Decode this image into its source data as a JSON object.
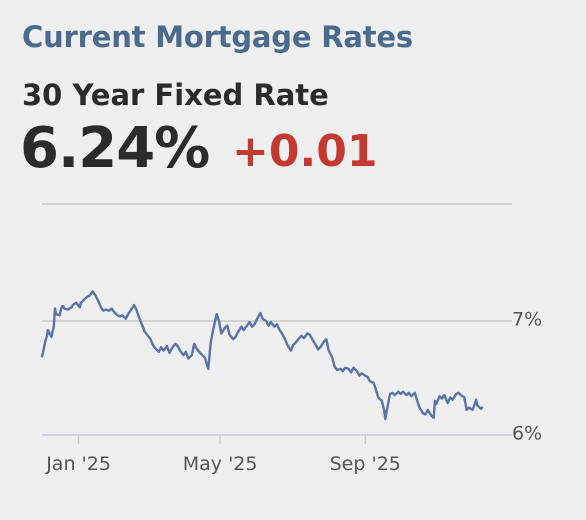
{
  "header": {
    "title": "Current Mortgage Rates",
    "subtitle": "30 Year Fixed Rate",
    "rate": "6.24%",
    "change": "+0.01"
  },
  "colors": {
    "title": "#4a6a8e",
    "change": "#c23a32",
    "line": "#5b73a8",
    "grid": "#c8c8c8"
  },
  "chart_data": {
    "type": "line",
    "title": "",
    "xlabel": "",
    "ylabel": "",
    "ylim": [
      5.9,
      7.3
    ],
    "xlim": [
      "2024-12-01",
      "2025-12-31"
    ],
    "grid": true,
    "y_ticks": [
      {
        "value": 7,
        "label": "7%"
      },
      {
        "value": 6,
        "label": "6%"
      }
    ],
    "x_ticks": [
      {
        "date": "2025-01-01",
        "label": "Jan '25"
      },
      {
        "date": "2025-05-01",
        "label": "May '25"
      },
      {
        "date": "2025-09-01",
        "label": "Sep '25"
      }
    ],
    "series": [
      {
        "name": "",
        "points": [
          [
            "2024-12-01",
            6.69
          ],
          [
            "2024-12-02",
            6.73
          ],
          [
            "2024-12-04",
            6.83
          ],
          [
            "2024-12-05",
            6.86
          ],
          [
            "2024-12-06",
            6.92
          ],
          [
            "2024-12-09",
            6.86
          ],
          [
            "2024-12-10",
            6.91
          ],
          [
            "2024-12-11",
            6.95
          ],
          [
            "2024-12-12",
            7.11
          ],
          [
            "2024-12-13",
            7.06
          ],
          [
            "2024-12-16",
            7.05
          ],
          [
            "2024-12-17",
            7.1
          ],
          [
            "2024-12-18",
            7.13
          ],
          [
            "2024-12-19",
            7.13
          ],
          [
            "2024-12-20",
            7.11
          ],
          [
            "2024-12-23",
            7.1
          ],
          [
            "2024-12-26",
            7.12
          ],
          [
            "2024-12-27",
            7.14
          ],
          [
            "2024-12-30",
            7.16
          ],
          [
            "2025-01-02",
            7.12
          ],
          [
            "2025-01-03",
            7.16
          ],
          [
            "2025-01-06",
            7.19
          ],
          [
            "2025-01-08",
            7.21
          ],
          [
            "2025-01-10",
            7.22
          ],
          [
            "2025-01-13",
            7.26
          ],
          [
            "2025-01-15",
            7.23
          ],
          [
            "2025-01-17",
            7.19
          ],
          [
            "2025-01-20",
            7.12
          ],
          [
            "2025-01-22",
            7.09
          ],
          [
            "2025-01-24",
            7.1
          ],
          [
            "2025-01-27",
            7.09
          ],
          [
            "2025-01-29",
            7.11
          ],
          [
            "2025-01-31",
            7.08
          ],
          [
            "2025-02-03",
            7.05
          ],
          [
            "2025-02-05",
            7.04
          ],
          [
            "2025-02-07",
            7.05
          ],
          [
            "2025-02-10",
            7.02
          ],
          [
            "2025-02-12",
            7.06
          ],
          [
            "2025-02-14",
            7.09
          ],
          [
            "2025-02-17",
            7.14
          ],
          [
            "2025-02-19",
            7.1
          ],
          [
            "2025-02-21",
            7.04
          ],
          [
            "2025-02-24",
            6.96
          ],
          [
            "2025-02-26",
            6.91
          ],
          [
            "2025-02-28",
            6.88
          ],
          [
            "2025-03-03",
            6.84
          ],
          [
            "2025-03-05",
            6.79
          ],
          [
            "2025-03-07",
            6.76
          ],
          [
            "2025-03-10",
            6.73
          ],
          [
            "2025-03-12",
            6.77
          ],
          [
            "2025-03-14",
            6.74
          ],
          [
            "2025-03-17",
            6.78
          ],
          [
            "2025-03-19",
            6.72
          ],
          [
            "2025-03-21",
            6.76
          ],
          [
            "2025-03-24",
            6.8
          ],
          [
            "2025-03-26",
            6.78
          ],
          [
            "2025-03-28",
            6.74
          ],
          [
            "2025-03-31",
            6.7
          ],
          [
            "2025-04-02",
            6.73
          ],
          [
            "2025-04-04",
            6.67
          ],
          [
            "2025-04-07",
            6.7
          ],
          [
            "2025-04-09",
            6.8
          ],
          [
            "2025-04-11",
            6.76
          ],
          [
            "2025-04-14",
            6.72
          ],
          [
            "2025-04-16",
            6.7
          ],
          [
            "2025-04-18",
            6.68
          ],
          [
            "2025-04-21",
            6.58
          ],
          [
            "2025-04-23",
            6.81
          ],
          [
            "2025-04-25",
            6.92
          ],
          [
            "2025-04-28",
            7.06
          ],
          [
            "2025-04-30",
            7.0
          ],
          [
            "2025-05-02",
            6.89
          ],
          [
            "2025-05-05",
            6.94
          ],
          [
            "2025-05-07",
            6.96
          ],
          [
            "2025-05-09",
            6.88
          ],
          [
            "2025-05-12",
            6.84
          ],
          [
            "2025-05-14",
            6.86
          ],
          [
            "2025-05-16",
            6.9
          ],
          [
            "2025-05-19",
            6.95
          ],
          [
            "2025-05-21",
            6.92
          ],
          [
            "2025-05-23",
            6.95
          ],
          [
            "2025-05-26",
            6.99
          ],
          [
            "2025-05-28",
            6.95
          ],
          [
            "2025-05-30",
            6.97
          ],
          [
            "2025-06-02",
            7.03
          ],
          [
            "2025-06-04",
            7.07
          ],
          [
            "2025-06-06",
            7.02
          ],
          [
            "2025-06-09",
            7.0
          ],
          [
            "2025-06-11",
            6.96
          ],
          [
            "2025-06-13",
            6.99
          ],
          [
            "2025-06-16",
            6.95
          ],
          [
            "2025-06-18",
            6.97
          ],
          [
            "2025-06-20",
            6.93
          ],
          [
            "2025-06-23",
            6.88
          ],
          [
            "2025-06-25",
            6.84
          ],
          [
            "2025-06-27",
            6.79
          ],
          [
            "2025-06-30",
            6.74
          ],
          [
            "2025-07-02",
            6.79
          ],
          [
            "2025-07-04",
            6.81
          ],
          [
            "2025-07-07",
            6.85
          ],
          [
            "2025-07-09",
            6.87
          ],
          [
            "2025-07-11",
            6.85
          ],
          [
            "2025-07-14",
            6.89
          ],
          [
            "2025-07-16",
            6.88
          ],
          [
            "2025-07-18",
            6.84
          ],
          [
            "2025-07-21",
            6.79
          ],
          [
            "2025-07-23",
            6.75
          ],
          [
            "2025-07-25",
            6.77
          ],
          [
            "2025-07-28",
            6.82
          ],
          [
            "2025-07-30",
            6.84
          ],
          [
            "2025-08-01",
            6.74
          ],
          [
            "2025-08-04",
            6.68
          ],
          [
            "2025-08-06",
            6.6
          ],
          [
            "2025-08-08",
            6.57
          ],
          [
            "2025-08-11",
            6.58
          ],
          [
            "2025-08-13",
            6.56
          ],
          [
            "2025-08-15",
            6.59
          ],
          [
            "2025-08-18",
            6.58
          ],
          [
            "2025-08-20",
            6.55
          ],
          [
            "2025-08-22",
            6.59
          ],
          [
            "2025-08-25",
            6.56
          ],
          [
            "2025-08-27",
            6.52
          ],
          [
            "2025-08-29",
            6.54
          ],
          [
            "2025-09-01",
            6.52
          ],
          [
            "2025-09-03",
            6.51
          ],
          [
            "2025-09-05",
            6.47
          ],
          [
            "2025-09-08",
            6.46
          ],
          [
            "2025-09-10",
            6.4
          ],
          [
            "2025-09-12",
            6.33
          ],
          [
            "2025-09-15",
            6.3
          ],
          [
            "2025-09-17",
            6.22
          ],
          [
            "2025-09-18",
            6.14
          ],
          [
            "2025-09-19",
            6.2
          ],
          [
            "2025-09-22",
            6.36
          ],
          [
            "2025-09-24",
            6.37
          ],
          [
            "2025-09-26",
            6.35
          ],
          [
            "2025-09-29",
            6.38
          ],
          [
            "2025-10-01",
            6.36
          ],
          [
            "2025-10-03",
            6.38
          ],
          [
            "2025-10-06",
            6.35
          ],
          [
            "2025-10-08",
            6.37
          ],
          [
            "2025-10-10",
            6.34
          ],
          [
            "2025-10-13",
            6.37
          ],
          [
            "2025-10-15",
            6.3
          ],
          [
            "2025-10-17",
            6.24
          ],
          [
            "2025-10-20",
            6.19
          ],
          [
            "2025-10-22",
            6.18
          ],
          [
            "2025-10-24",
            6.22
          ],
          [
            "2025-10-27",
            6.17
          ],
          [
            "2025-10-29",
            6.15
          ],
          [
            "2025-10-30",
            6.3
          ],
          [
            "2025-10-31",
            6.27
          ],
          [
            "2025-11-03",
            6.34
          ],
          [
            "2025-11-05",
            6.32
          ],
          [
            "2025-11-07",
            6.35
          ],
          [
            "2025-11-10",
            6.28
          ],
          [
            "2025-11-12",
            6.33
          ],
          [
            "2025-11-14",
            6.31
          ],
          [
            "2025-11-17",
            6.36
          ],
          [
            "2025-11-19",
            6.37
          ],
          [
            "2025-11-21",
            6.35
          ],
          [
            "2025-11-24",
            6.33
          ],
          [
            "2025-11-26",
            6.22
          ],
          [
            "2025-11-28",
            6.24
          ],
          [
            "2025-12-01",
            6.22
          ],
          [
            "2025-12-03",
            6.28
          ],
          [
            "2025-12-04",
            6.31
          ],
          [
            "2025-12-05",
            6.26
          ],
          [
            "2025-12-08",
            6.23
          ],
          [
            "2025-12-09",
            6.24
          ]
        ]
      }
    ]
  }
}
